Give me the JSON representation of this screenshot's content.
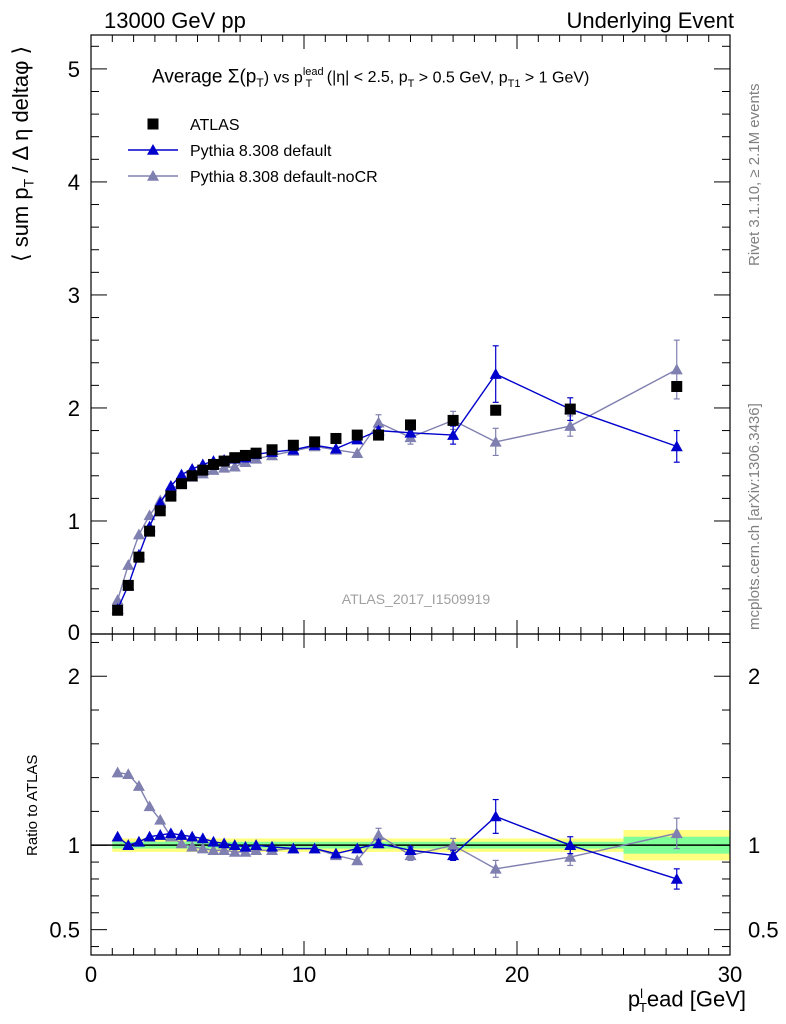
{
  "header": {
    "left": "13000 GeV pp",
    "right": "Underlying Event"
  },
  "side_labels": {
    "rivet": "Rivet 3.1.10, ≥ 2.1M events",
    "mcplots": "mcplots.cern.ch [arXiv:1306.3436]"
  },
  "watermark": "ATLAS_2017_I1509919",
  "colors": {
    "atlas": "#000000",
    "default": "#0000cc",
    "noCR": "#8080b0",
    "band_green": "#80ff99",
    "band_yellow": "#ffff80",
    "ratio_line": "#00aa00"
  },
  "chart_data": [
    {
      "type": "scatter",
      "title": "Average Σ(p_T) vs p_T^lead (|η| < 2.5, p_T > 0.5 GeV, p_T1 > 1 GeV)",
      "title_parts": {
        "lead": "Average ",
        "sigma": "Σ(p",
        "sub_t": "T",
        "close": ")  vs p",
        "sup_lead": "lead",
        "sub_t2": "T",
        "rest1": " (|η| < 2.5, p",
        "sub_t3": "T",
        "rest2": " > 0.5 GeV, p",
        "sub_t1": "T1",
        "rest3": " > 1 GeV)"
      },
      "ylabel": "⟨ sum p_T / Δη deltaφ ⟩",
      "ylabel_parts": {
        "a": "⟨ sum p",
        "sub": "T",
        "b": " / Δ η deltaφ ⟩"
      },
      "xlim": [
        0,
        30
      ],
      "ylim": [
        0,
        5.3
      ],
      "y_ticks": [
        1,
        2,
        3,
        4,
        5
      ],
      "y_tick_labels": [
        "1",
        "2",
        "3",
        "4",
        "5"
      ],
      "y_zero_label": "0",
      "legend_position": "top-left",
      "series": [
        {
          "name": "ATLAS",
          "marker": "square",
          "x": [
            1.25,
            1.75,
            2.25,
            2.75,
            3.25,
            3.75,
            4.25,
            4.75,
            5.25,
            5.75,
            6.25,
            6.75,
            7.25,
            7.75,
            8.5,
            9.5,
            10.5,
            11.5,
            12.5,
            13.5,
            15.0,
            17.0,
            19.0,
            22.5,
            27.5
          ],
          "y": [
            0.21,
            0.43,
            0.68,
            0.91,
            1.09,
            1.22,
            1.33,
            1.4,
            1.45,
            1.5,
            1.53,
            1.56,
            1.58,
            1.6,
            1.63,
            1.67,
            1.7,
            1.73,
            1.76,
            1.76,
            1.85,
            1.89,
            1.98,
            1.99,
            2.19
          ]
        },
        {
          "name": "Pythia 8.308 default",
          "marker": "triangle",
          "x": [
            1.25,
            1.75,
            2.25,
            2.75,
            3.25,
            3.75,
            4.25,
            4.75,
            5.25,
            5.75,
            6.25,
            6.75,
            7.25,
            7.75,
            8.5,
            9.5,
            10.5,
            11.5,
            12.5,
            13.5,
            15.0,
            17.0,
            19.0,
            22.5,
            27.5
          ],
          "y": [
            0.22,
            0.43,
            0.7,
            0.95,
            1.16,
            1.31,
            1.41,
            1.46,
            1.5,
            1.53,
            1.54,
            1.55,
            1.56,
            1.59,
            1.61,
            1.63,
            1.67,
            1.64,
            1.72,
            1.8,
            1.78,
            1.76,
            2.3,
            1.99,
            1.66
          ],
          "yerr": [
            0,
            0,
            0,
            0,
            0,
            0,
            0,
            0,
            0,
            0,
            0,
            0,
            0,
            0,
            0,
            0,
            0,
            0,
            0,
            0.03,
            0.03,
            0.08,
            0.25,
            0.1,
            0.14
          ]
        },
        {
          "name": "Pythia 8.308 default-noCR",
          "marker": "triangle",
          "x": [
            1.25,
            1.75,
            2.25,
            2.75,
            3.25,
            3.75,
            4.25,
            4.75,
            5.25,
            5.75,
            6.25,
            6.75,
            7.25,
            7.75,
            8.5,
            9.5,
            10.5,
            11.5,
            12.5,
            13.5,
            15.0,
            17.0,
            19.0,
            22.5,
            27.5
          ],
          "y": [
            0.3,
            0.61,
            0.88,
            1.05,
            1.18,
            1.27,
            1.34,
            1.39,
            1.42,
            1.45,
            1.47,
            1.48,
            1.52,
            1.55,
            1.58,
            1.62,
            1.66,
            1.63,
            1.6,
            1.87,
            1.74,
            1.89,
            1.7,
            1.84,
            2.34
          ],
          "yerr": [
            0,
            0,
            0,
            0,
            0,
            0,
            0,
            0,
            0,
            0,
            0,
            0,
            0,
            0,
            0,
            0,
            0,
            0,
            0,
            0.07,
            0.06,
            0.08,
            0.12,
            0.09,
            0.26
          ]
        }
      ]
    },
    {
      "type": "scatter",
      "ylabel": "Ratio to ATLAS",
      "xlabel": "p_T^lead [GeV]",
      "xlabel_parts": {
        "a": "p",
        "sup": "l",
        "sub": "T",
        "b": "ead [GeV]"
      },
      "xlim": [
        0,
        30
      ],
      "ylim": [
        0.35,
        2.25
      ],
      "x_ticks": [
        0,
        10,
        20,
        30
      ],
      "x_tick_labels": [
        "0",
        "10",
        "20",
        "30"
      ],
      "y_ticks": [
        0.5,
        1,
        2
      ],
      "y_tick_labels": [
        "0.5",
        "1",
        "2"
      ],
      "reference_line": 1,
      "bands": [
        {
          "x0": 1.0,
          "x1": 25.0,
          "inner": 0.02,
          "outer": 0.04
        },
        {
          "x0": 25.0,
          "x1": 30.0,
          "inner": 0.05,
          "outer": 0.09
        }
      ],
      "series": [
        {
          "name": "Pythia 8.308 default",
          "x": [
            1.25,
            1.75,
            2.25,
            2.75,
            3.25,
            3.75,
            4.25,
            4.75,
            5.25,
            5.75,
            6.25,
            6.75,
            7.25,
            7.75,
            8.5,
            9.5,
            10.5,
            11.5,
            12.5,
            13.5,
            15.0,
            17.0,
            19.0,
            22.5,
            27.5
          ],
          "y": [
            1.05,
            1.0,
            1.02,
            1.05,
            1.06,
            1.07,
            1.06,
            1.05,
            1.04,
            1.02,
            1.01,
            1.0,
            0.99,
            1.0,
            0.99,
            0.98,
            0.98,
            0.95,
            0.98,
            1.01,
            0.97,
            0.94,
            1.17,
            1.0,
            0.8
          ],
          "yerr": [
            0,
            0,
            0,
            0,
            0,
            0,
            0,
            0,
            0,
            0,
            0,
            0,
            0,
            0,
            0,
            0,
            0,
            0,
            0,
            0.02,
            0.02,
            0.03,
            0.1,
            0.05,
            0.06
          ]
        },
        {
          "name": "Pythia 8.308 default-noCR",
          "x": [
            1.25,
            1.75,
            2.25,
            2.75,
            3.25,
            3.75,
            4.25,
            4.75,
            5.25,
            5.75,
            6.25,
            6.75,
            7.25,
            7.75,
            8.5,
            9.5,
            10.5,
            11.5,
            12.5,
            13.5,
            15.0,
            17.0,
            19.0,
            22.5,
            27.5
          ],
          "y": [
            1.43,
            1.42,
            1.35,
            1.23,
            1.15,
            1.05,
            1.01,
            0.99,
            0.98,
            0.97,
            0.97,
            0.96,
            0.96,
            0.97,
            0.97,
            0.98,
            0.98,
            0.94,
            0.91,
            1.06,
            0.94,
            1.0,
            0.86,
            0.93,
            1.07
          ],
          "yerr": [
            0,
            0,
            0,
            0,
            0,
            0,
            0,
            0,
            0,
            0,
            0,
            0,
            0,
            0,
            0,
            0,
            0,
            0,
            0,
            0.04,
            0.03,
            0.04,
            0.05,
            0.05,
            0.09
          ]
        }
      ]
    }
  ]
}
